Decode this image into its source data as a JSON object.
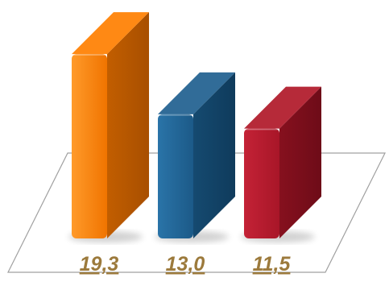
{
  "chart_data": {
    "type": "bar",
    "style": "3d",
    "categories": [
      "",
      "",
      ""
    ],
    "values": [
      19.3,
      13.0,
      11.5
    ],
    "data_labels": [
      "19,3",
      "13,0",
      "11,5"
    ],
    "colors": [
      "#FF7F00",
      "#1F5F8F",
      "#B01828"
    ],
    "label_color": "#9C7A3C",
    "floor_outline_color": "#A0A0A0",
    "grid": false,
    "legend": "none",
    "title": "",
    "xlabel": "",
    "ylabel": ""
  }
}
